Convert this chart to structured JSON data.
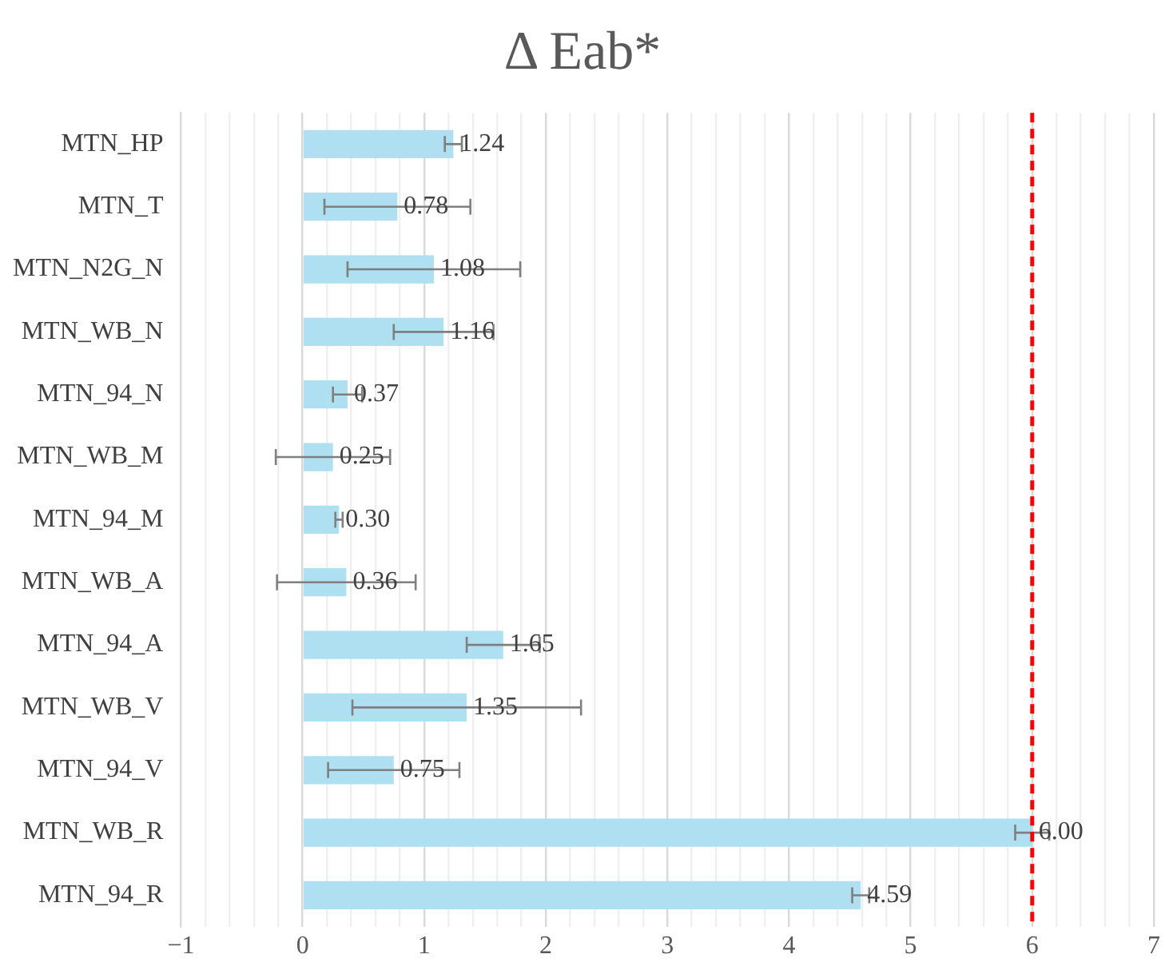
{
  "chart_data": {
    "type": "bar",
    "orientation": "horizontal",
    "title": "Δ Eab*",
    "categories": [
      "MTN_HP",
      "MTN_T",
      "MTN_N2G_N",
      "MTN_WB_N",
      "MTN_94_N",
      "MTN_WB_M",
      "MTN_94_M",
      "MTN_WB_A",
      "MTN_94_A",
      "MTN_WB_V",
      "MTN_94_V",
      "MTN_WB_R",
      "MTN_94_R"
    ],
    "values": [
      1.24,
      0.78,
      1.08,
      1.16,
      0.37,
      0.25,
      0.3,
      0.36,
      1.65,
      1.35,
      0.75,
      6.0,
      4.59
    ],
    "value_labels": [
      "1.24",
      "0.78",
      "1.08",
      "1.16",
      "0.37",
      "0.25",
      "0.30",
      "0.36",
      "1.65",
      "1.35",
      "0.75",
      "6.00",
      "4.59"
    ],
    "errors": [
      0.07,
      0.6,
      0.71,
      0.41,
      0.12,
      0.47,
      0.03,
      0.57,
      0.3,
      0.94,
      0.54,
      0.14,
      0.07
    ],
    "color": "#aee0f2",
    "xlim": [
      -1,
      7
    ],
    "xticks": [
      -1,
      {
        "value": -0.8,
        "label": null
      },
      {
        "value": -0.6,
        "label": null
      },
      {
        "value": -0.4,
        "label": null
      },
      {
        "value": -0.2,
        "label": null
      },
      0,
      {
        "value": 0.2,
        "label": null
      },
      {
        "value": 0.4,
        "label": null
      },
      {
        "value": 0.6,
        "label": null
      },
      {
        "value": 0.8,
        "label": null
      },
      1,
      {
        "value": 1.2,
        "label": null
      },
      {
        "value": 1.4,
        "label": null
      },
      {
        "value": 1.6,
        "label": null
      },
      {
        "value": 1.8,
        "label": null
      },
      2,
      {
        "value": 2.2,
        "label": null
      },
      {
        "value": 2.4,
        "label": null
      },
      {
        "value": 2.6,
        "label": null
      },
      {
        "value": 2.8,
        "label": null
      },
      3,
      {
        "value": 3.2,
        "label": null
      },
      {
        "value": 3.4,
        "label": null
      },
      {
        "value": 3.6,
        "label": null
      },
      {
        "value": 3.8,
        "label": null
      },
      4,
      {
        "value": 4.2,
        "label": null
      },
      {
        "value": 4.4,
        "label": null
      },
      {
        "value": 4.6,
        "label": null
      },
      {
        "value": 4.8,
        "label": null
      },
      5,
      {
        "value": 5.2,
        "label": null
      },
      {
        "value": 5.4,
        "label": null
      },
      {
        "value": 5.6,
        "label": null
      },
      {
        "value": 5.8,
        "label": null
      },
      6,
      {
        "value": 6.2,
        "label": null
      },
      {
        "value": 6.4,
        "label": null
      },
      {
        "value": 6.6,
        "label": null
      },
      {
        "value": 6.8,
        "label": null
      },
      7
    ],
    "ref_lines": [
      {
        "axis": "x",
        "value": 6,
        "color": "#ff0000",
        "line_style": "dashed"
      }
    ],
    "grid": "x",
    "legend": false
  }
}
